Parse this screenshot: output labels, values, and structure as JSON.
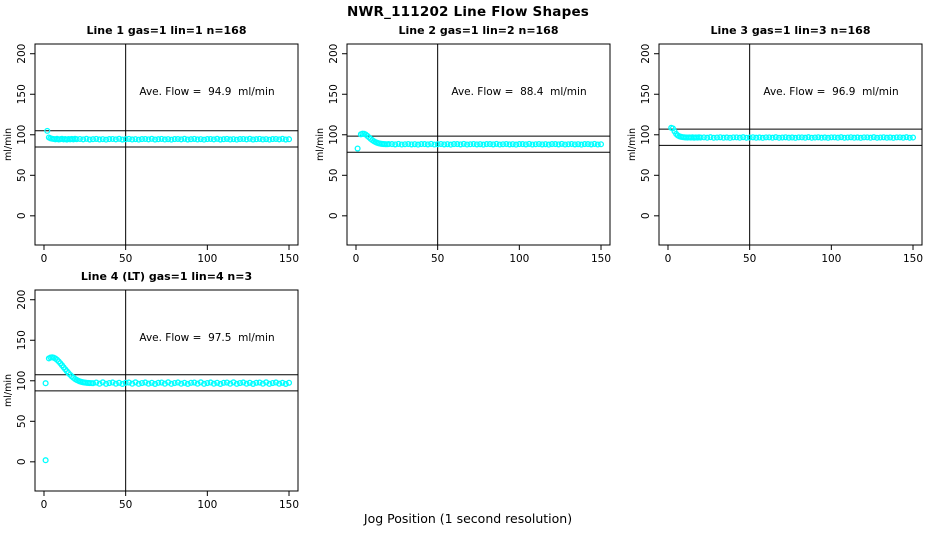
{
  "figure_title": "NWR_111202  Line Flow Shapes",
  "x_axis_label": "Jog Position (1 second resolution)",
  "style": {
    "point_color": "#00FFFF",
    "axis_color": "#000000",
    "background": "#FFFFFF"
  },
  "chart_data": [
    {
      "type": "scatter",
      "title": "Line 1 gas=1 lin=1 n=168",
      "annotation": "Ave. Flow =  94.9  ml/min",
      "ave_flow_ml_min": 94.9,
      "ylabel": "ml/min",
      "xlim": [
        -5.5,
        155.5
      ],
      "ylim": [
        -36,
        212
      ],
      "x_ticks": [
        0,
        50,
        100,
        150
      ],
      "y_ticks": [
        0,
        50,
        100,
        150,
        200
      ],
      "vline_x": 50,
      "hlines": [
        104.9,
        84.9
      ],
      "grid": false,
      "points": [
        [
          2,
          104.8
        ],
        [
          3,
          96.6
        ],
        [
          4,
          95.6
        ],
        [
          5,
          95.1
        ],
        [
          6,
          94.8
        ],
        [
          7,
          94.4
        ],
        [
          8,
          95.0
        ],
        [
          9,
          94.2
        ],
        [
          10,
          94.6
        ],
        [
          11,
          95.0
        ],
        [
          12,
          94.3
        ],
        [
          13,
          94.7
        ],
        [
          14,
          94.1
        ],
        [
          15,
          94.8
        ],
        [
          16,
          94.4
        ],
        [
          17,
          94.9
        ],
        [
          18,
          94.3
        ],
        [
          19,
          95.0
        ],
        [
          20,
          94.5
        ],
        [
          22,
          94.8
        ],
        [
          24,
          94.3
        ],
        [
          26,
          95.0
        ],
        [
          28,
          94.1
        ],
        [
          30,
          94.5
        ],
        [
          32,
          94.9
        ],
        [
          34,
          94.2
        ],
        [
          36,
          94.6
        ],
        [
          38,
          94.0
        ],
        [
          40,
          94.7
        ],
        [
          42,
          94.8
        ],
        [
          44,
          94.3
        ],
        [
          46,
          95.0
        ],
        [
          48,
          94.1
        ],
        [
          50,
          94.5
        ],
        [
          52,
          94.9
        ],
        [
          54,
          94.2
        ],
        [
          56,
          94.6
        ],
        [
          58,
          94.0
        ],
        [
          60,
          94.7
        ],
        [
          62,
          94.8
        ],
        [
          64,
          94.3
        ],
        [
          66,
          95.0
        ],
        [
          68,
          94.1
        ],
        [
          70,
          94.5
        ],
        [
          72,
          94.9
        ],
        [
          74,
          94.2
        ],
        [
          76,
          94.6
        ],
        [
          78,
          94.0
        ],
        [
          80,
          94.7
        ],
        [
          82,
          94.8
        ],
        [
          84,
          94.3
        ],
        [
          86,
          95.0
        ],
        [
          88,
          94.1
        ],
        [
          90,
          94.5
        ],
        [
          92,
          94.9
        ],
        [
          94,
          94.2
        ],
        [
          96,
          94.6
        ],
        [
          98,
          94.0
        ],
        [
          100,
          94.7
        ],
        [
          102,
          94.8
        ],
        [
          104,
          94.3
        ],
        [
          106,
          95.0
        ],
        [
          108,
          94.1
        ],
        [
          110,
          94.5
        ],
        [
          112,
          94.9
        ],
        [
          114,
          94.2
        ],
        [
          116,
          94.6
        ],
        [
          118,
          94.0
        ],
        [
          120,
          94.7
        ],
        [
          122,
          94.8
        ],
        [
          124,
          94.3
        ],
        [
          126,
          95.0
        ],
        [
          128,
          94.1
        ],
        [
          130,
          94.5
        ],
        [
          132,
          94.9
        ],
        [
          134,
          94.2
        ],
        [
          136,
          94.6
        ],
        [
          138,
          94.0
        ],
        [
          140,
          94.7
        ],
        [
          142,
          94.8
        ],
        [
          144,
          94.3
        ],
        [
          146,
          95.0
        ],
        [
          148,
          94.1
        ],
        [
          150,
          94.5
        ]
      ]
    },
    {
      "type": "scatter",
      "title": "Line 2 gas=1 lin=2 n=168",
      "annotation": "Ave. Flow =  88.4  ml/min",
      "ave_flow_ml_min": 88.4,
      "ylabel": "ml/min",
      "xlim": [
        -5.5,
        155.5
      ],
      "ylim": [
        -36,
        212
      ],
      "x_ticks": [
        0,
        50,
        100,
        150
      ],
      "y_ticks": [
        0,
        50,
        100,
        150,
        200
      ],
      "vline_x": 50,
      "hlines": [
        98.4,
        78.4
      ],
      "grid": false,
      "points": [
        [
          1,
          83.0
        ],
        [
          3,
          100.6
        ],
        [
          4,
          101.4
        ],
        [
          5,
          101.2
        ],
        [
          6,
          100.2
        ],
        [
          7,
          98.6
        ],
        [
          8,
          96.8
        ],
        [
          9,
          95.0
        ],
        [
          10,
          93.4
        ],
        [
          11,
          92.0
        ],
        [
          12,
          90.9
        ],
        [
          13,
          90.1
        ],
        [
          14,
          89.5
        ],
        [
          15,
          89.0
        ],
        [
          16,
          88.7
        ],
        [
          17,
          88.5
        ],
        [
          18,
          88.4
        ],
        [
          19,
          88.3
        ],
        [
          20,
          88.5
        ],
        [
          22,
          88.5
        ],
        [
          24,
          88.1
        ],
        [
          26,
          88.7
        ],
        [
          28,
          88.0
        ],
        [
          30,
          88.3
        ],
        [
          32,
          88.6
        ],
        [
          34,
          88.1
        ],
        [
          36,
          88.4
        ],
        [
          38,
          87.9
        ],
        [
          40,
          88.5
        ],
        [
          42,
          88.5
        ],
        [
          44,
          88.1
        ],
        [
          46,
          88.7
        ],
        [
          48,
          88.0
        ],
        [
          50,
          88.3
        ],
        [
          52,
          88.6
        ],
        [
          54,
          88.1
        ],
        [
          56,
          88.4
        ],
        [
          58,
          87.9
        ],
        [
          60,
          88.5
        ],
        [
          62,
          88.5
        ],
        [
          64,
          88.1
        ],
        [
          66,
          88.7
        ],
        [
          68,
          88.0
        ],
        [
          70,
          88.3
        ],
        [
          72,
          88.6
        ],
        [
          74,
          88.1
        ],
        [
          76,
          88.4
        ],
        [
          78,
          87.9
        ],
        [
          80,
          88.5
        ],
        [
          82,
          88.5
        ],
        [
          84,
          88.1
        ],
        [
          86,
          88.7
        ],
        [
          88,
          88.0
        ],
        [
          90,
          88.3
        ],
        [
          92,
          88.6
        ],
        [
          94,
          88.1
        ],
        [
          96,
          88.4
        ],
        [
          98,
          87.9
        ],
        [
          100,
          88.5
        ],
        [
          102,
          88.5
        ],
        [
          104,
          88.1
        ],
        [
          106,
          88.7
        ],
        [
          108,
          88.0
        ],
        [
          110,
          88.3
        ],
        [
          112,
          88.6
        ],
        [
          114,
          88.1
        ],
        [
          116,
          88.4
        ],
        [
          118,
          87.9
        ],
        [
          120,
          88.5
        ],
        [
          122,
          88.5
        ],
        [
          124,
          88.1
        ],
        [
          126,
          88.7
        ],
        [
          128,
          88.0
        ],
        [
          130,
          88.3
        ],
        [
          132,
          88.6
        ],
        [
          134,
          88.1
        ],
        [
          136,
          88.4
        ],
        [
          138,
          87.9
        ],
        [
          140,
          88.5
        ],
        [
          142,
          88.5
        ],
        [
          144,
          88.1
        ],
        [
          146,
          88.7
        ],
        [
          148,
          88.0
        ],
        [
          150,
          88.3
        ]
      ]
    },
    {
      "type": "scatter",
      "title": "Line 3 gas=1 lin=3 n=168",
      "annotation": "Ave. Flow =  96.9  ml/min",
      "ave_flow_ml_min": 96.9,
      "ylabel": "ml/min",
      "xlim": [
        -5.5,
        155.5
      ],
      "ylim": [
        -36,
        212
      ],
      "x_ticks": [
        0,
        50,
        100,
        150
      ],
      "y_ticks": [
        0,
        50,
        100,
        150,
        200
      ],
      "vline_x": 50,
      "hlines": [
        106.9,
        86.9
      ],
      "grid": false,
      "points": [
        [
          2,
          108.6
        ],
        [
          3,
          107.9
        ],
        [
          4,
          104.2
        ],
        [
          5,
          101.0
        ],
        [
          6,
          99.1
        ],
        [
          7,
          98.1
        ],
        [
          8,
          97.5
        ],
        [
          9,
          97.1
        ],
        [
          10,
          96.9
        ],
        [
          11,
          96.7
        ],
        [
          12,
          96.6
        ],
        [
          13,
          96.8
        ],
        [
          14,
          96.5
        ],
        [
          15,
          96.9
        ],
        [
          16,
          96.4
        ],
        [
          17,
          96.8
        ],
        [
          18,
          96.5
        ],
        [
          19,
          96.9
        ],
        [
          20,
          96.6
        ],
        [
          22,
          96.8
        ],
        [
          24,
          96.4
        ],
        [
          26,
          97.0
        ],
        [
          28,
          96.3
        ],
        [
          30,
          96.6
        ],
        [
          32,
          96.9
        ],
        [
          34,
          96.4
        ],
        [
          36,
          96.7
        ],
        [
          38,
          96.2
        ],
        [
          40,
          96.8
        ],
        [
          42,
          96.8
        ],
        [
          44,
          96.4
        ],
        [
          46,
          97.0
        ],
        [
          48,
          96.3
        ],
        [
          50,
          96.6
        ],
        [
          52,
          96.9
        ],
        [
          54,
          96.4
        ],
        [
          56,
          96.7
        ],
        [
          58,
          96.2
        ],
        [
          60,
          96.8
        ],
        [
          62,
          96.8
        ],
        [
          64,
          96.4
        ],
        [
          66,
          97.0
        ],
        [
          68,
          96.3
        ],
        [
          70,
          96.6
        ],
        [
          72,
          96.9
        ],
        [
          74,
          96.4
        ],
        [
          76,
          96.7
        ],
        [
          78,
          96.2
        ],
        [
          80,
          96.8
        ],
        [
          82,
          96.8
        ],
        [
          84,
          96.4
        ],
        [
          86,
          97.0
        ],
        [
          88,
          96.3
        ],
        [
          90,
          96.6
        ],
        [
          92,
          96.9
        ],
        [
          94,
          96.4
        ],
        [
          96,
          96.7
        ],
        [
          98,
          96.2
        ],
        [
          100,
          96.8
        ],
        [
          102,
          96.8
        ],
        [
          104,
          96.4
        ],
        [
          106,
          97.0
        ],
        [
          108,
          96.3
        ],
        [
          110,
          96.6
        ],
        [
          112,
          96.9
        ],
        [
          114,
          96.4
        ],
        [
          116,
          96.7
        ],
        [
          118,
          96.2
        ],
        [
          120,
          96.8
        ],
        [
          122,
          96.8
        ],
        [
          124,
          96.4
        ],
        [
          126,
          97.0
        ],
        [
          128,
          96.3
        ],
        [
          130,
          96.6
        ],
        [
          132,
          96.9
        ],
        [
          134,
          96.4
        ],
        [
          136,
          96.7
        ],
        [
          138,
          96.2
        ],
        [
          140,
          96.8
        ],
        [
          142,
          96.8
        ],
        [
          144,
          96.4
        ],
        [
          146,
          97.0
        ],
        [
          148,
          96.3
        ],
        [
          150,
          96.6
        ]
      ]
    },
    {
      "type": "scatter",
      "title": "Line 4 (LT) gas=1 lin=4 n=3",
      "annotation": "Ave. Flow =  97.5  ml/min",
      "ave_flow_ml_min": 97.5,
      "ylabel": "ml/min",
      "xlim": [
        -5.5,
        155.5
      ],
      "ylim": [
        -36,
        212
      ],
      "x_ticks": [
        0,
        50,
        100,
        150
      ],
      "y_ticks": [
        0,
        50,
        100,
        150,
        200
      ],
      "vline_x": 50,
      "hlines": [
        107.5,
        87.5
      ],
      "grid": false,
      "points": [
        [
          1,
          2.0
        ],
        [
          1,
          97.0
        ],
        [
          3,
          127.6
        ],
        [
          4,
          128.7
        ],
        [
          5,
          129.0
        ],
        [
          6,
          128.5
        ],
        [
          7,
          127.4
        ],
        [
          8,
          125.9
        ],
        [
          9,
          123.9
        ],
        [
          10,
          121.6
        ],
        [
          11,
          119.2
        ],
        [
          12,
          116.7
        ],
        [
          13,
          114.2
        ],
        [
          14,
          111.8
        ],
        [
          15,
          109.5
        ],
        [
          16,
          107.4
        ],
        [
          17,
          105.5
        ],
        [
          18,
          103.8
        ],
        [
          19,
          102.3
        ],
        [
          20,
          101.0
        ],
        [
          21,
          100.0
        ],
        [
          22,
          99.2
        ],
        [
          23,
          98.6
        ],
        [
          24,
          98.1
        ],
        [
          25,
          97.8
        ],
        [
          26,
          97.5
        ],
        [
          27,
          97.3
        ],
        [
          28,
          97.2
        ],
        [
          29,
          97.1
        ],
        [
          30,
          97.0
        ],
        [
          32,
          97.8
        ],
        [
          34,
          96.4
        ],
        [
          36,
          98.1
        ],
        [
          38,
          96.2
        ],
        [
          40,
          97.2
        ],
        [
          42,
          97.9
        ],
        [
          44,
          96.4
        ],
        [
          46,
          97.5
        ],
        [
          48,
          96.1
        ],
        [
          50,
          97.5
        ],
        [
          52,
          97.8
        ],
        [
          54,
          96.4
        ],
        [
          56,
          98.1
        ],
        [
          58,
          96.2
        ],
        [
          60,
          97.2
        ],
        [
          62,
          97.9
        ],
        [
          64,
          96.4
        ],
        [
          66,
          97.5
        ],
        [
          68,
          96.1
        ],
        [
          70,
          97.5
        ],
        [
          72,
          97.8
        ],
        [
          74,
          96.4
        ],
        [
          76,
          98.1
        ],
        [
          78,
          96.2
        ],
        [
          80,
          97.2
        ],
        [
          82,
          97.9
        ],
        [
          84,
          96.4
        ],
        [
          86,
          97.5
        ],
        [
          88,
          96.1
        ],
        [
          90,
          97.5
        ],
        [
          92,
          97.8
        ],
        [
          94,
          96.4
        ],
        [
          96,
          98.1
        ],
        [
          98,
          96.2
        ],
        [
          100,
          97.2
        ],
        [
          102,
          97.9
        ],
        [
          104,
          96.4
        ],
        [
          106,
          97.5
        ],
        [
          108,
          96.1
        ],
        [
          110,
          97.5
        ],
        [
          112,
          97.8
        ],
        [
          114,
          96.4
        ],
        [
          116,
          98.1
        ],
        [
          118,
          96.2
        ],
        [
          120,
          97.2
        ],
        [
          122,
          97.9
        ],
        [
          124,
          96.4
        ],
        [
          126,
          97.5
        ],
        [
          128,
          96.1
        ],
        [
          130,
          97.5
        ],
        [
          132,
          97.8
        ],
        [
          134,
          96.4
        ],
        [
          136,
          98.1
        ],
        [
          138,
          96.2
        ],
        [
          140,
          97.2
        ],
        [
          142,
          97.9
        ],
        [
          144,
          96.4
        ],
        [
          146,
          97.5
        ],
        [
          148,
          96.1
        ],
        [
          150,
          97.5
        ]
      ]
    }
  ]
}
